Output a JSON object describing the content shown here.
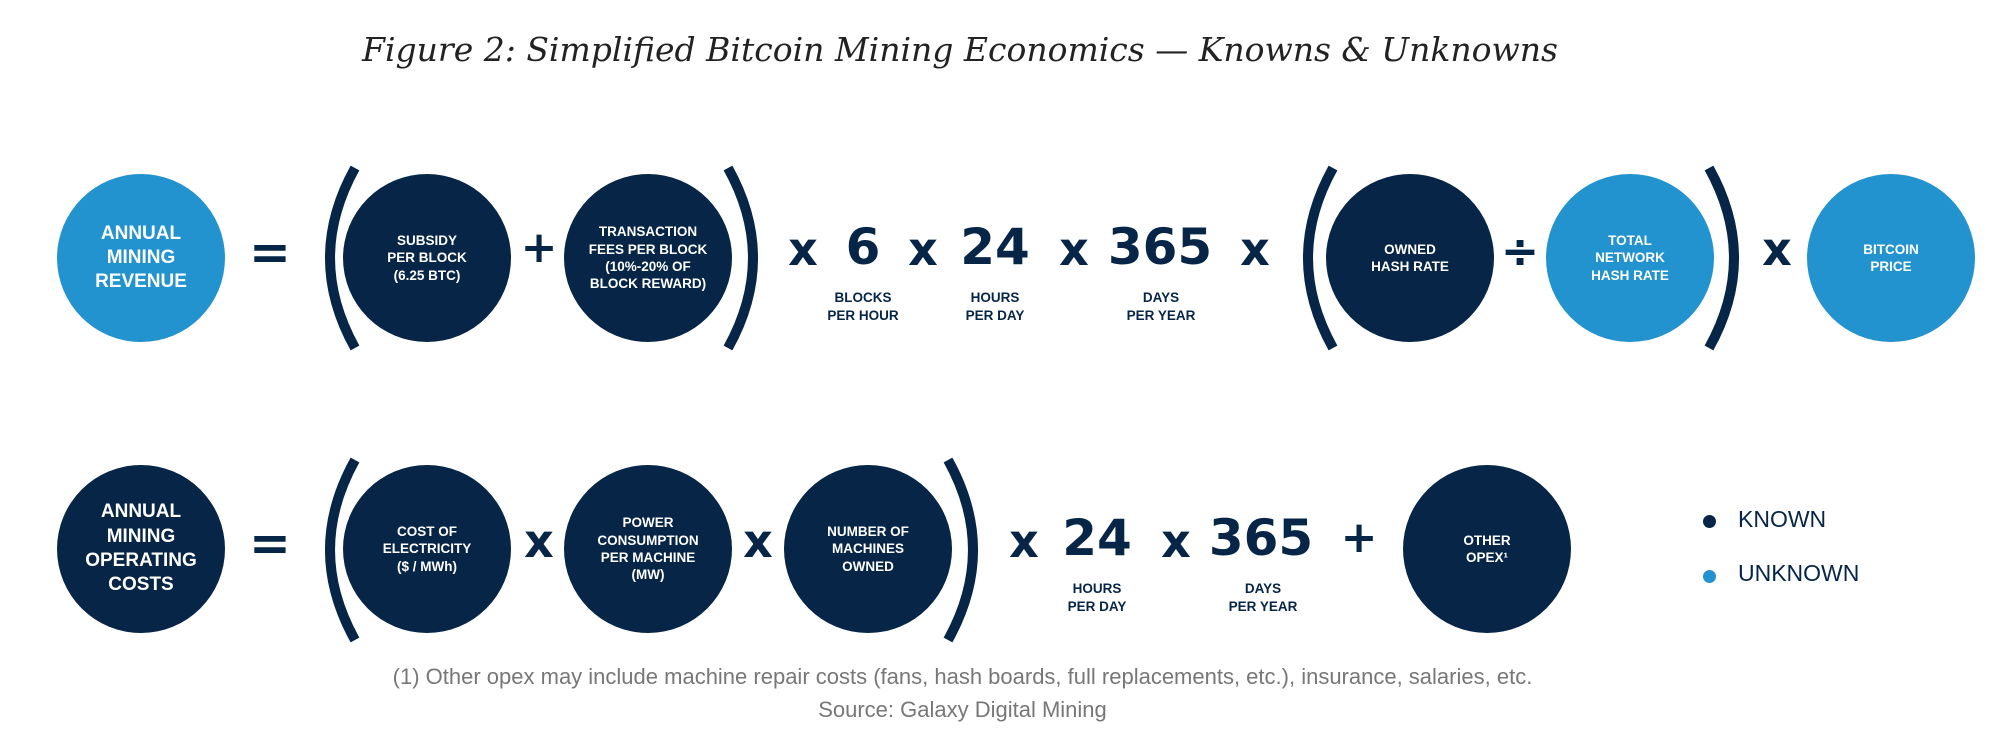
{
  "title": "Figure 2: Simplified Bitcoin Mining Economics — Knowns & Unknowns",
  "colors": {
    "known": "#062547",
    "unknown": "#2393cf"
  },
  "revenue_row": {
    "result": "ANNUAL\nMINING\nREVENUE",
    "equals": "=",
    "subsidy": "SUBSIDY\nPER BLOCK\n(6.25 BTC)",
    "plus": "+",
    "fees": "TRANSACTION\nFEES PER BLOCK\n(10%-20% OF\nBLOCK REWARD)",
    "times_1": "x",
    "blocks_value": "6",
    "blocks_caption": "BLOCKS\nPER HOUR",
    "times_2": "x",
    "hours_value": "24",
    "hours_caption": "HOURS\nPER DAY",
    "times_3": "x",
    "days_value": "365",
    "days_caption": "DAYS\nPER YEAR",
    "times_4": "x",
    "owned_hash_rate": "OWNED\nHASH RATE",
    "divide": "÷",
    "network_hash_rate": "TOTAL\nNETWORK\nHASH RATE",
    "times_5": "x",
    "bitcoin_price": "BITCOIN\nPRICE"
  },
  "cost_row": {
    "result": "ANNUAL\nMINING\nOPERATING\nCOSTS",
    "equals": "=",
    "electricity": "COST OF\nELECTRICITY\n($ / MWh)",
    "times_1": "x",
    "power": "POWER\nCONSUMPTION\nPER MACHINE\n(MW)",
    "times_2": "x",
    "machines": "NUMBER OF\nMACHINES\nOWNED",
    "times_3": "x",
    "hours_value": "24",
    "hours_caption": "HOURS\nPER DAY",
    "times_4": "x",
    "days_value": "365",
    "days_caption": "DAYS\nPER YEAR",
    "plus": "+",
    "other_opex": "OTHER\nOPEX¹"
  },
  "legend": {
    "known": "KNOWN",
    "unknown": "UNKNOWN"
  },
  "footnote": "(1) Other opex may include machine repair costs (fans, hash boards, full replacements, etc.), insurance, salaries, etc.",
  "source": "Source: Galaxy Digital Mining"
}
